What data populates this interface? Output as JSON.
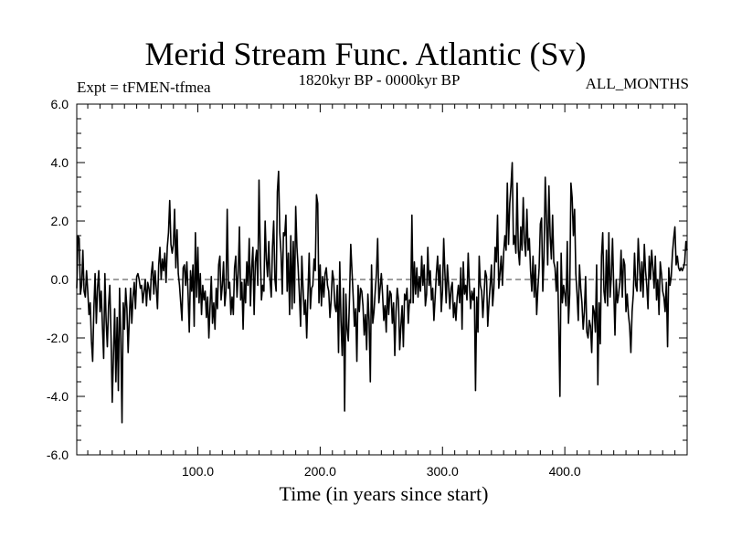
{
  "chart_data": {
    "type": "line",
    "title": "Merid Stream Func. Atlantic (Sv)",
    "subtitle": "1820kyr BP - 0000kyr BP",
    "experiment_label": "Expt = tFMEN-tfmea",
    "season_label": "ALL_MONTHS",
    "xlabel": "Time (in years since start)",
    "ylabel": "",
    "xlim": [
      1,
      500
    ],
    "ylim": [
      -6,
      6
    ],
    "x_ticks": [
      100,
      200,
      300,
      400
    ],
    "x_tick_labels": [
      "100.0",
      "200.0",
      "300.0",
      "400.0"
    ],
    "y_ticks": [
      -6,
      -4,
      -2,
      0,
      2,
      4,
      6
    ],
    "y_tick_labels": [
      "-6.0",
      "-4.0",
      "-2.0",
      "0.0",
      "2.0",
      "4.0",
      "6.0"
    ],
    "zero_line": true,
    "series": [
      {
        "name": "Merid Stream Func. Atlantic",
        "x_start": 1,
        "x_step": 1,
        "values": [
          -0.3,
          1.5,
          1.4,
          -0.5,
          -0.2,
          1.0,
          -0.4,
          -0.6,
          0.3,
          -0.4,
          -1.2,
          -0.8,
          -2.1,
          -2.8,
          -1.0,
          0.2,
          -1.5,
          -0.3,
          0.3,
          -1.1,
          -0.4,
          -1.6,
          -2.7,
          0.2,
          -1.4,
          -2.3,
          -0.9,
          -0.2,
          -1.9,
          -4.2,
          -2.6,
          -1.0,
          -3.5,
          -1.3,
          -3.8,
          -0.3,
          -2.0,
          -4.9,
          -0.8,
          -1.7,
          -0.3,
          -1.0,
          -2.5,
          -1.3,
          -0.3,
          -1.5,
          -0.6,
          -0.1,
          -1.0,
          0.1,
          0.2,
          0.0,
          -0.3,
          -0.2,
          -0.8,
          -0.4,
          0.0,
          -0.9,
          -0.1,
          -0.3,
          -0.7,
          0.2,
          0.6,
          -0.5,
          0.3,
          -0.3,
          -1.0,
          0.5,
          1.1,
          0.0,
          0.7,
          0.3,
          0.9,
          -0.1,
          1.1,
          1.6,
          2.7,
          1.2,
          0.9,
          1.2,
          2.4,
          0.4,
          1.7,
          0.2,
          -0.2,
          -0.8,
          -1.4,
          0.4,
          0.5,
          -0.2,
          0.6,
          -0.5,
          -1.8,
          0.3,
          -0.4,
          0.5,
          -1.6,
          1.6,
          -0.6,
          1.1,
          -0.8,
          0.2,
          -1.2,
          -0.2,
          -0.7,
          -0.4,
          -1.3,
          -0.6,
          -2.0,
          -0.9,
          0.1,
          -1.5,
          -0.8,
          -1.7,
          -0.3,
          -1.0,
          0.5,
          0.8,
          -0.7,
          -0.2,
          0.6,
          -0.9,
          -0.4,
          2.4,
          -0.3,
          -0.1,
          -1.2,
          -0.6,
          -1.2,
          0.4,
          0.8,
          -0.6,
          0.2,
          1.8,
          -0.7,
          -0.1,
          -1.7,
          0.0,
          -0.8,
          0.6,
          -0.2,
          1.4,
          -0.9,
          0.4,
          1.1,
          -1.2,
          0.6,
          1.0,
          -0.2,
          3.4,
          1.0,
          -0.7,
          -0.2,
          -0.4,
          2.0,
          0.7,
          0.1,
          1.3,
          0.0,
          -0.6,
          1.1,
          2.0,
          0.0,
          -0.4,
          3.0,
          3.7,
          1.6,
          0.9,
          -0.5,
          1.6,
          1.5,
          2.2,
          -0.4,
          0.9,
          -1.2,
          1.5,
          -1.0,
          1.3,
          -0.8,
          2.5,
          1.1,
          0.4,
          -0.5,
          -1.6,
          0.8,
          -0.3,
          -1.2,
          -0.7,
          -2.0,
          -0.5,
          0.9,
          -1.0,
          -0.3,
          -0.2,
          0.7,
          0.3,
          2.9,
          2.6,
          -0.8,
          0.5,
          -0.9,
          0.1,
          -0.6,
          0.2,
          0.4,
          -0.2,
          -0.4,
          -1.3,
          -0.7,
          0.3,
          0.0,
          -0.9,
          -1.1,
          -0.2,
          -2.5,
          0.6,
          -1.4,
          -2.6,
          -0.3,
          -4.5,
          -0.5,
          -1.7,
          -2.1,
          -0.6,
          1.2,
          0.3,
          -0.6,
          -1.6,
          -1.0,
          -2.8,
          -0.2,
          -1.1,
          -0.3,
          -0.4,
          -0.9,
          -1.9,
          -1.2,
          -2.4,
          -0.5,
          -1.4,
          -3.5,
          0.5,
          -1.5,
          -1.1,
          -0.4,
          0.2,
          1.4,
          -0.8,
          -0.3,
          0.2,
          -0.5,
          -1.4,
          -0.9,
          -1.8,
          -0.2,
          -1.2,
          -0.4,
          -0.5,
          -1.5,
          -0.8,
          -2.6,
          -1.1,
          -0.3,
          -0.7,
          -2.4,
          -1.6,
          -0.9,
          -2.3,
          -0.5,
          -0.7,
          -0.3,
          -1.5,
          -0.7,
          -0.8,
          2.2,
          -0.8,
          0.6,
          -0.5,
          0.4,
          -0.6,
          0.1,
          -0.4,
          0.8,
          -0.2,
          0.5,
          -0.9,
          -0.5,
          1.1,
          -0.2,
          0.3,
          -0.7,
          -0.3,
          -1.4,
          -0.6,
          0.2,
          0.8,
          -0.2,
          0.5,
          -1.1,
          -0.4,
          1.4,
          0.2,
          -0.8,
          0.5,
          -0.2,
          -1.0,
          -0.3,
          -0.1,
          -1.3,
          -0.8,
          -1.4,
          -0.6,
          -0.2,
          -0.8,
          0.4,
          -1.7,
          0.6,
          -0.5,
          -0.2,
          -0.7,
          0.9,
          -0.2,
          -1.0,
          -0.4,
          -0.7,
          -0.3,
          -3.8,
          -0.6,
          -1.8,
          0.8,
          -0.2,
          -0.4,
          -1.3,
          -0.5,
          0.3,
          0.1,
          -1.6,
          -0.8,
          -0.2,
          0.5,
          -0.9,
          -0.3,
          1.1,
          0.6,
          2.2,
          -0.3,
          0.2,
          0.8,
          -0.2,
          0.9,
          1.5,
          1.0,
          3.3,
          1.2,
          2.6,
          3.2,
          4.0,
          1.2,
          1.5,
          0.9,
          3.3,
          1.0,
          0.5,
          1.8,
          1.0,
          2.8,
          1.3,
          0.8,
          2.4,
          1.0,
          1.4,
          0.3,
          -0.4,
          0.8,
          -0.6,
          0.5,
          -1.2,
          -0.3,
          0.4,
          1.9,
          2.1,
          -0.4,
          0.8,
          3.5,
          2.1,
          0.5,
          3.2,
          1.5,
          0.7,
          2.2,
          0.6,
          0.4,
          -0.4,
          0.6,
          -1.5,
          -4.0,
          0.9,
          -0.8,
          -0.2,
          -0.5,
          -0.9,
          1.3,
          -1.5,
          -0.5,
          3.3,
          2.8,
          1.5,
          2.4,
          0.2,
          -0.5,
          -1.4,
          0.5,
          -0.3,
          -0.8,
          -1.7,
          -1.1,
          0.1,
          -1.8,
          -2.0,
          -1.4,
          -1.6,
          -2.5,
          -0.9,
          -1.1,
          -1.8,
          0.5,
          -3.6,
          -0.8,
          -2.2,
          0.8,
          1.6,
          -0.4,
          -0.8,
          1.0,
          -0.9,
          1.6,
          -0.6,
          0.1,
          1.4,
          -0.3,
          -1.9,
          0.0,
          -0.8,
          -0.5,
          -0.1,
          1.0,
          -0.6,
          0.7,
          0.5,
          -1.1,
          -0.5,
          -1.2,
          -1.6,
          -2.5,
          -1.1,
          -0.5,
          0.9,
          -0.2,
          -0.4,
          1.4,
          0.5,
          -0.4,
          0.6,
          -0.6,
          1.2,
          0.3,
          -0.2,
          -1.0,
          0.8,
          0.0,
          1.0,
          0.4,
          -0.3,
          0.8,
          -0.7,
          0.0,
          -1.2,
          0.6,
          0.2,
          -0.4,
          -0.6,
          -1.1,
          -0.1,
          -2.3,
          0.4,
          -0.2,
          0.1,
          0.9,
          1.4,
          1.8,
          0.5,
          0.8,
          0.4,
          0.3,
          0.4,
          0.3,
          0.4,
          0.6,
          1.3,
          1.0
        ]
      }
    ]
  }
}
